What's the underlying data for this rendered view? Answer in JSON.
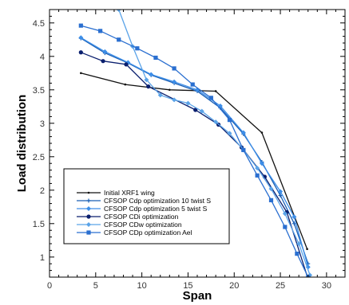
{
  "chart_data": {
    "type": "line",
    "title": "",
    "xlabel": "Span",
    "ylabel": "Load distribution",
    "xlim": [
      0,
      32
    ],
    "ylim": [
      0.7,
      4.7
    ],
    "x_ticks": [
      0,
      5,
      10,
      15,
      20,
      25,
      30
    ],
    "y_ticks": [
      1,
      1.5,
      2,
      2.5,
      3,
      3.5,
      4,
      4.5
    ],
    "x_tick_labels": [
      "0",
      "5",
      "10",
      "15",
      "20",
      "25",
      "30"
    ],
    "y_tick_labels": [
      "1",
      "1.5",
      "2",
      "2.5",
      "3",
      "3.5",
      "4",
      "4.5"
    ],
    "grid": false,
    "legend_position": "bottom-left",
    "series": [
      {
        "name": "Initial XRF1 wing",
        "color": "#111111",
        "marker": "dot",
        "points": [
          [
            3.4,
            3.75
          ],
          [
            8.2,
            3.58
          ],
          [
            13.0,
            3.5
          ],
          [
            18.0,
            3.48
          ],
          [
            23.0,
            2.86
          ],
          [
            27.9,
            1.12
          ]
        ]
      },
      {
        "name": "CFSOP Cdp optimization 10 twist S",
        "color": "#1a5fb4",
        "marker": "plus",
        "points": [
          [
            3.4,
            4.27
          ],
          [
            6.0,
            4.05
          ],
          [
            8.5,
            3.9
          ],
          [
            11.0,
            3.72
          ],
          [
            13.5,
            3.6
          ],
          [
            16.0,
            3.48
          ],
          [
            18.5,
            3.23
          ],
          [
            21.0,
            2.84
          ],
          [
            23.0,
            2.42
          ],
          [
            25.0,
            1.92
          ],
          [
            26.5,
            1.5
          ],
          [
            28.0,
            0.9
          ]
        ]
      },
      {
        "name": "CFSOP Cdp optimization 5 twist S",
        "color": "#3d8ee8",
        "marker": "diamond",
        "points": [
          [
            3.4,
            4.28
          ],
          [
            6.0,
            4.07
          ],
          [
            8.5,
            3.91
          ],
          [
            11.0,
            3.73
          ],
          [
            13.5,
            3.62
          ],
          [
            16.0,
            3.5
          ],
          [
            18.5,
            3.26
          ],
          [
            21.0,
            2.86
          ],
          [
            23.0,
            2.4
          ],
          [
            25.0,
            1.98
          ],
          [
            26.5,
            1.6
          ],
          [
            28.0,
            0.85
          ]
        ]
      },
      {
        "name": "CFSOP CDi optimization",
        "color": "#0a1f6e",
        "marker": "circle",
        "points": [
          [
            3.4,
            4.06
          ],
          [
            5.8,
            3.93
          ],
          [
            8.3,
            3.88
          ],
          [
            10.7,
            3.55
          ],
          [
            15.8,
            3.2
          ],
          [
            18.3,
            2.98
          ],
          [
            20.8,
            2.64
          ],
          [
            23.3,
            2.2
          ],
          [
            25.7,
            1.67
          ],
          [
            28.0,
            0.67
          ]
        ]
      },
      {
        "name": "CFSOP CDw optimization",
        "color": "#5aa3e8",
        "marker": "diamond",
        "points": [
          [
            7.5,
            4.7
          ],
          [
            9.0,
            4.15
          ],
          [
            10.5,
            3.65
          ],
          [
            12.0,
            3.42
          ],
          [
            13.5,
            3.35
          ],
          [
            15.0,
            3.3
          ],
          [
            16.5,
            3.18
          ],
          [
            18.0,
            3.02
          ],
          [
            19.5,
            2.85
          ],
          [
            21.0,
            2.6
          ],
          [
            22.5,
            2.33
          ],
          [
            24.0,
            2.02
          ],
          [
            25.5,
            1.65
          ],
          [
            27.0,
            1.2
          ],
          [
            28.2,
            0.73
          ]
        ]
      },
      {
        "name": "CFSOP CDp optimization Ael",
        "color": "#2a6fd0",
        "marker": "square",
        "points": [
          [
            3.4,
            4.46
          ],
          [
            5.5,
            4.38
          ],
          [
            7.5,
            4.25
          ],
          [
            9.5,
            4.12
          ],
          [
            11.5,
            3.98
          ],
          [
            13.5,
            3.82
          ],
          [
            15.5,
            3.58
          ],
          [
            17.5,
            3.38
          ],
          [
            19.5,
            3.05
          ],
          [
            21.0,
            2.6
          ],
          [
            22.5,
            2.22
          ],
          [
            24.0,
            1.85
          ],
          [
            25.5,
            1.45
          ],
          [
            26.8,
            1.05
          ],
          [
            28.0,
            0.7
          ]
        ]
      }
    ]
  }
}
